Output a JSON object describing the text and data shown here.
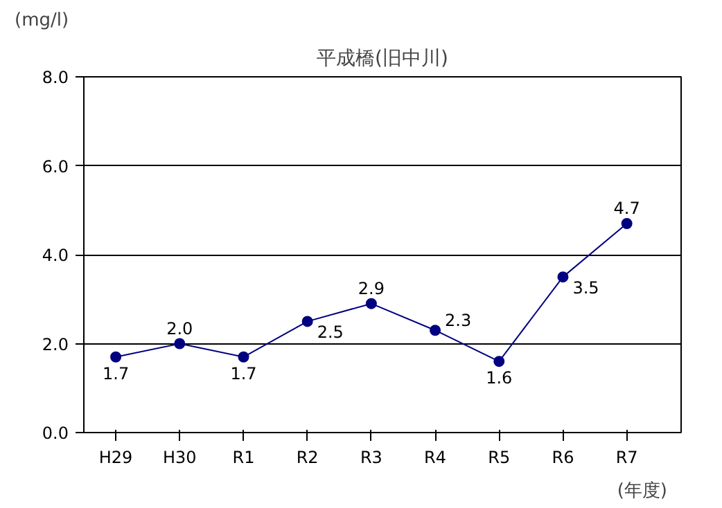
{
  "chart_data": {
    "type": "line",
    "title": "平成橋(旧中川)",
    "ylabel": "(mg/l)",
    "xlabel": "(年度)",
    "categories": [
      "H29",
      "H30",
      "R1",
      "R2",
      "R3",
      "R4",
      "R5",
      "R6",
      "R7"
    ],
    "series": [
      {
        "color": "#000080",
        "values": [
          1.7,
          2.0,
          1.7,
          2.5,
          2.9,
          2.3,
          1.6,
          3.5,
          4.7
        ],
        "value_labels": [
          "1.7",
          "2.0",
          "1.7",
          "2.5",
          "2.9",
          "2.3",
          "1.6",
          "3.5",
          "4.7"
        ]
      }
    ],
    "ylim": [
      0,
      8
    ],
    "yticks": [
      {
        "value": 0,
        "label": "0.0"
      },
      {
        "value": 2,
        "label": "2.0"
      },
      {
        "value": 4,
        "label": "4.0"
      },
      {
        "value": 6,
        "label": "6.0"
      },
      {
        "value": 8,
        "label": "8.0"
      }
    ],
    "grid": "y",
    "marker": "circle",
    "line_style": "solid"
  }
}
